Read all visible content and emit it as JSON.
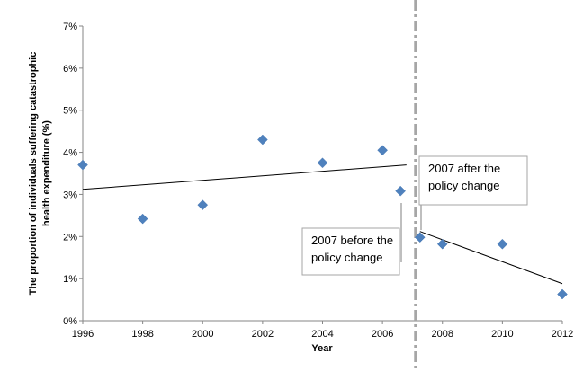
{
  "chart_data": {
    "type": "scatter",
    "xlabel": "Year",
    "ylabel": "The proportion of individuals suffering catastrophic health expenditure (%)",
    "ylabel_lines": [
      "The proportion of individuals  suffering catastrophic",
      "health expenditure  (%)"
    ],
    "xlim": [
      1996,
      2012
    ],
    "ylim": [
      0,
      7
    ],
    "x_ticks": [
      1996,
      1998,
      2000,
      2002,
      2004,
      2006,
      2008,
      2010,
      2012
    ],
    "y_ticks": [
      0,
      1,
      2,
      3,
      4,
      5,
      6,
      7
    ],
    "y_tick_labels": [
      "0%",
      "1%",
      "2%",
      "3%",
      "4%",
      "5%",
      "6%",
      "7%"
    ],
    "grid": false,
    "marker_color": "#4f81bd",
    "series": [
      {
        "points": [
          {
            "x": 1996,
            "y": 3.7
          },
          {
            "x": 1998,
            "y": 2.42
          },
          {
            "x": 2000,
            "y": 2.75
          },
          {
            "x": 2002,
            "y": 4.3
          },
          {
            "x": 2004,
            "y": 3.75
          },
          {
            "x": 2006,
            "y": 4.05
          },
          {
            "x": 2006.6,
            "y": 3.08
          },
          {
            "x": 2007.25,
            "y": 1.98
          },
          {
            "x": 2008,
            "y": 1.82
          },
          {
            "x": 2010,
            "y": 1.82
          },
          {
            "x": 2012,
            "y": 0.63
          }
        ]
      }
    ],
    "trendlines": [
      {
        "x": [
          1996,
          2006.8
        ],
        "y": [
          3.12,
          3.7
        ]
      },
      {
        "x": [
          2007.25,
          2012
        ],
        "y": [
          2.12,
          0.88
        ]
      }
    ],
    "policy_change_x": 2007.1,
    "annotations": [
      {
        "text_lines": [
          "2007 after the",
          "policy change"
        ],
        "anchor": {
          "x": 2007.25,
          "y": 2.6
        }
      },
      {
        "text_lines": [
          "2007 before the",
          "policy change"
        ],
        "anchor": {
          "x": 2006.6,
          "y": 2.75
        }
      }
    ]
  }
}
